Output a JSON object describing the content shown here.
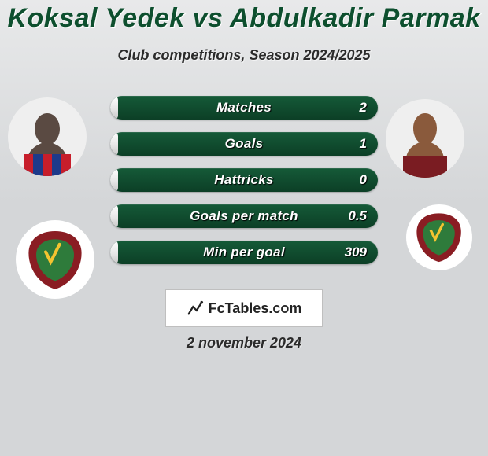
{
  "title": "Koksal Yedek vs Abdulkadir Parmak",
  "subtitle": "Club competitions, Season 2024/2025",
  "date": "2 november 2024",
  "logo_text": "FcTables.com",
  "colors": {
    "title_color": "#0d4f2e",
    "bar_bg_top": "#155a38",
    "bar_bg_bot": "#0c3f26",
    "bar_fill_top": "#ffffff",
    "bar_fill_bot": "#c7c7c7",
    "page_bg_top": "#e8e9ea",
    "page_bg_bot": "#d4d6d8",
    "crest_primary": "#8a1d23",
    "crest_accent": "#2e7b3b"
  },
  "stats": [
    {
      "label": "Matches",
      "left_pct": 3,
      "right_value": "2"
    },
    {
      "label": "Goals",
      "left_pct": 3,
      "right_value": "1"
    },
    {
      "label": "Hattricks",
      "left_pct": 3,
      "right_value": "0"
    },
    {
      "label": "Goals per match",
      "left_pct": 3,
      "right_value": "0.5"
    },
    {
      "label": "Min per goal",
      "left_pct": 3,
      "right_value": "309"
    }
  ],
  "players": {
    "left": {
      "name": "Koksal Yedek",
      "club": "Hatayspor"
    },
    "right": {
      "name": "Abdulkadir Parmak",
      "club": "Hatayspor"
    }
  }
}
